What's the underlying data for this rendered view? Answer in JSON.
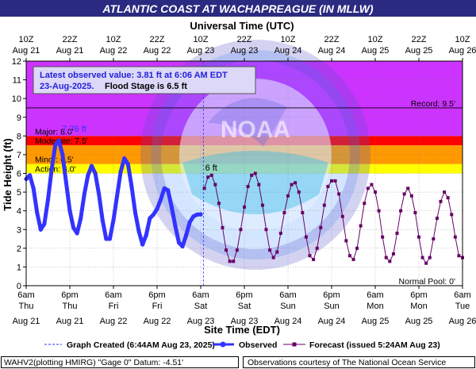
{
  "chart_data": {
    "type": "line",
    "title": "ATLANTIC COAST AT WACHAPREAGUE (IN MLLW)",
    "top_axis_label": "Universal Time (UTC)",
    "xlabel": "Site Time (EDT)",
    "ylabel": "Tide Height (ft)",
    "ylim": [
      0,
      12
    ],
    "yticks": [
      0,
      1,
      2,
      3,
      4,
      5,
      6,
      7,
      8,
      9,
      10,
      11,
      12
    ],
    "x_hours_range": [
      0,
      120
    ],
    "bottom_ticks": [
      {
        "time": "6am",
        "day": "Thu",
        "date": "Aug 21"
      },
      {
        "time": "6pm",
        "day": "Thu",
        "date": "Aug 21"
      },
      {
        "time": "6am",
        "day": "Fri",
        "date": "Aug 22"
      },
      {
        "time": "6pm",
        "day": "Fri",
        "date": "Aug 22"
      },
      {
        "time": "6am",
        "day": "Sat",
        "date": "Aug 23"
      },
      {
        "time": "6pm",
        "day": "Sat",
        "date": "Aug 23"
      },
      {
        "time": "6am",
        "day": "Sun",
        "date": "Aug 24"
      },
      {
        "time": "6pm",
        "day": "Sun",
        "date": "Aug 24"
      },
      {
        "time": "6am",
        "day": "Mon",
        "date": "Aug 25"
      },
      {
        "time": "6pm",
        "day": "Mon",
        "date": "Aug 25"
      },
      {
        "time": "6am",
        "day": "Tue",
        "date": "Aug 26"
      }
    ],
    "top_ticks": [
      {
        "time": "10Z",
        "date": "Aug 21"
      },
      {
        "time": "22Z",
        "date": "Aug 21"
      },
      {
        "time": "10Z",
        "date": "Aug 22"
      },
      {
        "time": "22Z",
        "date": "Aug 22"
      },
      {
        "time": "10Z",
        "date": "Aug 23"
      },
      {
        "time": "22Z",
        "date": "Aug 23"
      },
      {
        "time": "10Z",
        "date": "Aug 24"
      },
      {
        "time": "22Z",
        "date": "Aug 24"
      },
      {
        "time": "10Z",
        "date": "Aug 25"
      },
      {
        "time": "22Z",
        "date": "Aug 25"
      },
      {
        "time": "10Z",
        "date": "Aug 26"
      }
    ],
    "bands": [
      {
        "from": 6.0,
        "to": 6.5,
        "color": "#ffff00",
        "label": "Action: 6.0'"
      },
      {
        "from": 6.5,
        "to": 7.5,
        "color": "#ff9900",
        "label": "Minor: 6.5'"
      },
      {
        "from": 7.5,
        "to": 8.0,
        "color": "#ff0000",
        "label": "Moderate: 7.5'"
      },
      {
        "from": 8.0,
        "to": 12.0,
        "color": "#cc33ff",
        "label": "Major: 8.0'"
      }
    ],
    "reference_lines": [
      {
        "value": 9.5,
        "label": "Record: 9.5'"
      },
      {
        "value": 0.0,
        "label": "Normal Pool: 0'"
      }
    ],
    "info_box": {
      "line1": "Latest observed value: 3.81 ft at 6:06 AM EDT",
      "line2_date": "23-Aug-2025.",
      "line2_flood": "Flood Stage is 6.5 ft"
    },
    "peak_labels": {
      "observed": "7.76 ft",
      "forecast": "6 ft"
    },
    "graph_created_hour": 48.73,
    "series": [
      {
        "name": "Observed",
        "color": "#3333ff",
        "x_hours": [
          0,
          1,
          2,
          3,
          4,
          5,
          6,
          7,
          8,
          9,
          10,
          11,
          12,
          13,
          14,
          15,
          16,
          17,
          18,
          19,
          20,
          21,
          22,
          23,
          24,
          25,
          26,
          27,
          28,
          29,
          30,
          31,
          32,
          33,
          34,
          35,
          36,
          37,
          38,
          39,
          40,
          41,
          42,
          43,
          44,
          45,
          46,
          47,
          48
        ],
        "values": [
          5.7,
          5.9,
          5.2,
          3.9,
          3.0,
          3.3,
          4.6,
          6.2,
          7.5,
          7.76,
          7.0,
          5.5,
          4.0,
          3.1,
          2.8,
          3.6,
          4.9,
          5.9,
          6.4,
          6.0,
          4.9,
          3.5,
          2.5,
          2.5,
          3.5,
          4.8,
          6.1,
          6.8,
          6.5,
          5.3,
          3.9,
          2.9,
          2.2,
          2.7,
          3.6,
          3.8,
          4.1,
          4.6,
          5.2,
          5.1,
          4.2,
          3.2,
          2.3,
          2.1,
          2.7,
          3.4,
          3.7,
          3.8,
          3.81
        ]
      },
      {
        "name": "Forecast",
        "color": "#660066",
        "label": "Forecast (issued 5:24AM Aug 23)",
        "x_hours": [
          49,
          50,
          51,
          52,
          53,
          54,
          55,
          56,
          57,
          58,
          59,
          60,
          61,
          62,
          63,
          64,
          65,
          66,
          67,
          68,
          69,
          70,
          71,
          72,
          73,
          74,
          75,
          76,
          77,
          78,
          79,
          80,
          81,
          82,
          83,
          84,
          85,
          86,
          87,
          88,
          89,
          90,
          91,
          92,
          93,
          94,
          95,
          96,
          97,
          98,
          99,
          100,
          101,
          102,
          103,
          104,
          105,
          106,
          107,
          108,
          109,
          110,
          111,
          112,
          113,
          114,
          115,
          116,
          117,
          118,
          119,
          120
        ],
        "values": [
          5.2,
          5.8,
          5.9,
          5.4,
          4.4,
          3.1,
          1.9,
          1.3,
          1.3,
          1.9,
          3.0,
          4.2,
          5.3,
          5.9,
          6.0,
          5.4,
          4.3,
          3.0,
          1.9,
          1.5,
          1.8,
          2.8,
          3.9,
          4.8,
          5.4,
          5.5,
          5.0,
          3.9,
          2.6,
          1.6,
          1.4,
          2.0,
          3.1,
          4.3,
          5.3,
          5.6,
          5.6,
          4.9,
          3.7,
          2.4,
          1.6,
          1.4,
          2.0,
          3.2,
          4.4,
          5.2,
          5.4,
          5.0,
          4.0,
          2.6,
          1.5,
          1.3,
          1.7,
          2.8,
          4.0,
          4.9,
          5.2,
          4.8,
          3.9,
          2.6,
          1.5,
          1.2,
          1.5,
          2.5,
          3.6,
          4.5,
          5.0,
          4.7,
          3.8,
          2.6,
          1.6,
          1.5
        ]
      }
    ],
    "watermark": "NATIONAL OCEANIC AND ATMOSPHERIC ADMINISTRATION · U.S. DEPARTMENT OF COMMERCE · NOAA"
  },
  "legend": {
    "graph_created": "Graph Created (6:44AM Aug 23, 2025)",
    "observed": "Observed",
    "forecast": "Forecast (issued 5:24AM Aug 23)"
  },
  "footer": {
    "left": "WAHV2(plotting HMIRG) \"Gage 0\" Datum: -4.51'",
    "right": "Observations courtesy of The National Ocean Service"
  }
}
